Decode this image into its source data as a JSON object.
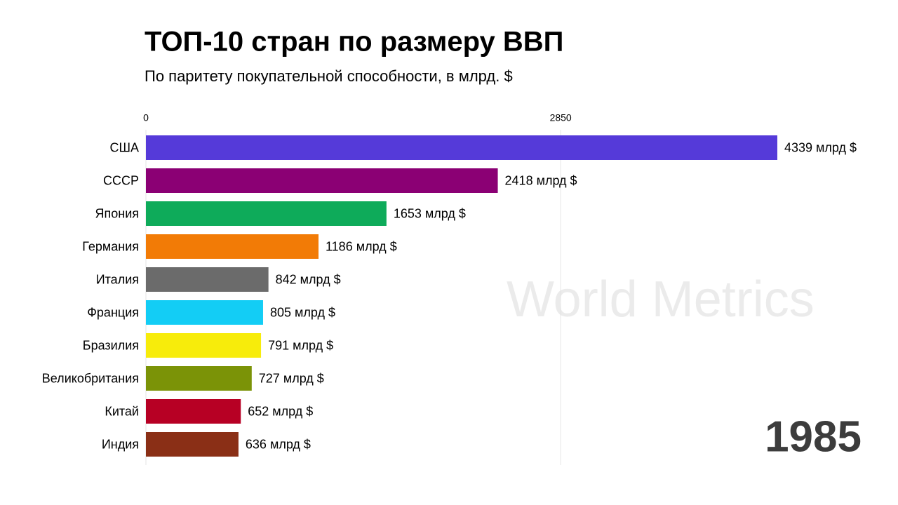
{
  "chart_data": {
    "type": "bar",
    "orientation": "horizontal",
    "title": "ТОП-10 стран по размеру ВВП",
    "subtitle": "По паритету покупательной способности, в млрд. $",
    "categories": [
      "США",
      "СССР",
      "Япония",
      "Германия",
      "Италия",
      "Франция",
      "Бразилия",
      "Великобритания",
      "Китай",
      "Индия"
    ],
    "values": [
      4339,
      2418,
      1653,
      1186,
      842,
      805,
      791,
      727,
      652,
      636
    ],
    "value_labels": [
      "4339 млрд $",
      "2418 млрд $",
      "1653 млрд $",
      "1186 млрд $",
      "842 млрд $",
      "805 млрд $",
      "791 млрд $",
      "727 млрд $",
      "652 млрд $",
      "636 млрд $"
    ],
    "colors": [
      "#553ad9",
      "#8b0074",
      "#0eab5a",
      "#f27b06",
      "#6b6b6b",
      "#13cdf5",
      "#f7ec0b",
      "#7b9307",
      "#b70024",
      "#8a2f16"
    ],
    "xlim": [
      0,
      4339
    ],
    "xticks": [
      0,
      2850
    ],
    "grid": true,
    "year": "1985",
    "watermark": "World Metrics"
  }
}
